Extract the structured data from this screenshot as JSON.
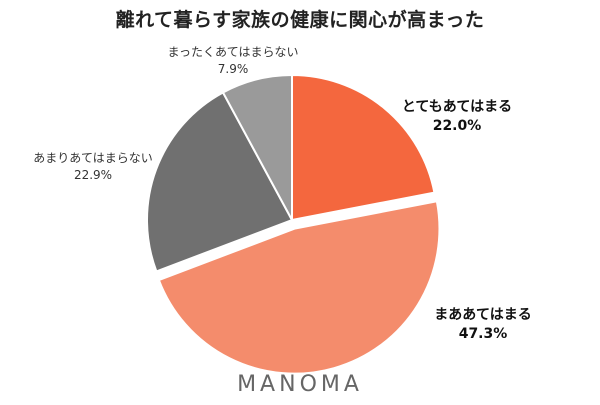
{
  "title": "離れて暮らす家族の健康に関心が高まった",
  "brand": "MANOMA",
  "chart_data": {
    "type": "pie",
    "title": "離れて暮らす家族の健康に関心が高まった",
    "slices": [
      {
        "label": "とてもあてはまる",
        "value": 22.0,
        "value_label": "22.0%",
        "color": "#f4673e",
        "label_bold": true
      },
      {
        "label": "まああてはまる",
        "value": 47.3,
        "value_label": "47.3%",
        "color": "#f48c6c",
        "label_bold": true,
        "exploded": true
      },
      {
        "label": "あまりあてはまらない",
        "value": 22.9,
        "value_label": "22.9%",
        "color": "#707070",
        "label_bold": false
      },
      {
        "label": "まったくあてはまらない",
        "value": 7.9,
        "value_label": "7.9%",
        "color": "#9a9a9a",
        "label_bold": false
      }
    ],
    "start": "12 o'clock",
    "direction": "clockwise"
  }
}
